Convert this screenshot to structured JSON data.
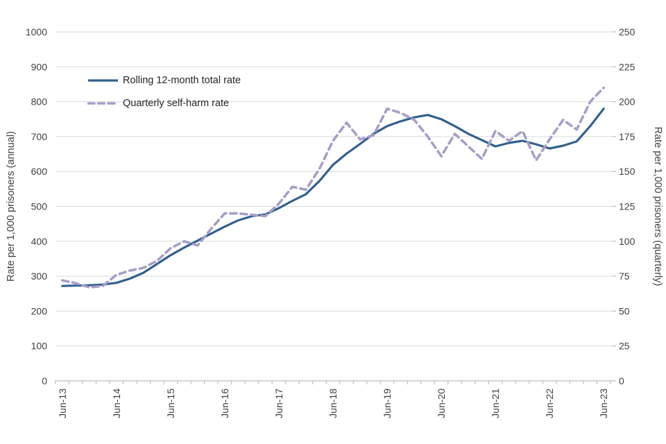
{
  "chart_data": {
    "type": "line",
    "title": "",
    "categories": [
      "Jun-13",
      "Sep-13",
      "Dec-13",
      "Mar-14",
      "Jun-14",
      "Sep-14",
      "Dec-14",
      "Mar-15",
      "Jun-15",
      "Sep-15",
      "Dec-15",
      "Mar-16",
      "Jun-16",
      "Sep-16",
      "Dec-16",
      "Mar-17",
      "Jun-17",
      "Sep-17",
      "Dec-17",
      "Mar-18",
      "Jun-18",
      "Sep-18",
      "Dec-18",
      "Mar-19",
      "Jun-19",
      "Sep-19",
      "Dec-19",
      "Mar-20",
      "Jun-20",
      "Sep-20",
      "Dec-20",
      "Mar-21",
      "Jun-21",
      "Sep-21",
      "Dec-21",
      "Mar-22",
      "Jun-22",
      "Sep-22",
      "Dec-22",
      "Mar-23",
      "Jun-23"
    ],
    "x_axis": {
      "tick_labels": [
        "Jun-13",
        "Jun-14",
        "Jun-15",
        "Jun-16",
        "Jun-17",
        "Jun-18",
        "Jun-19",
        "Jun-20",
        "Jun-21",
        "Jun-22",
        "Jun-23"
      ],
      "labelled_every_n_points": 4,
      "minor_ticks": "every quarter"
    },
    "y_axis_left": {
      "label": "Rate per 1,000 prisoners (annual)",
      "min": 0,
      "max": 1000,
      "step": 100
    },
    "y_axis_right": {
      "label": "Rate per 1,000 prisoners (quarterly)",
      "min": 0,
      "max": 250,
      "step": 25
    },
    "grid": true,
    "legend_position": "inside-top-left",
    "series": [
      {
        "name": "Rolling 12-month total rate",
        "axis": "left",
        "style": "solid",
        "color": "#31608e",
        "values": [
          272,
          273,
          274,
          276,
          281,
          293,
          310,
          335,
          360,
          382,
          402,
          422,
          442,
          460,
          472,
          477,
          495,
          516,
          535,
          573,
          619,
          651,
          679,
          708,
          730,
          744,
          755,
          762,
          750,
          730,
          708,
          690,
          672,
          682,
          688,
          678,
          666,
          674,
          686,
          730,
          780
        ]
      },
      {
        "name": "Quarterly self-harm rate",
        "axis": "right",
        "style": "dashed",
        "color": "#a89dc8",
        "values": [
          72,
          70,
          67,
          68,
          76,
          79,
          81,
          86,
          95,
          100,
          97,
          109,
          120,
          120,
          119,
          118,
          127,
          139,
          137,
          152,
          172,
          185,
          173,
          176,
          195,
          192,
          187,
          175,
          161,
          177,
          168,
          159,
          179,
          172,
          179,
          158,
          173,
          187,
          180,
          200,
          210
        ]
      }
    ]
  },
  "colors": {
    "background": "#ffffff",
    "gridline": "#d9d9d9",
    "axis_line": "#bfbfbf",
    "tick_text": "#404040",
    "axis_title_text": "#404040",
    "legend_text": "#262626"
  }
}
